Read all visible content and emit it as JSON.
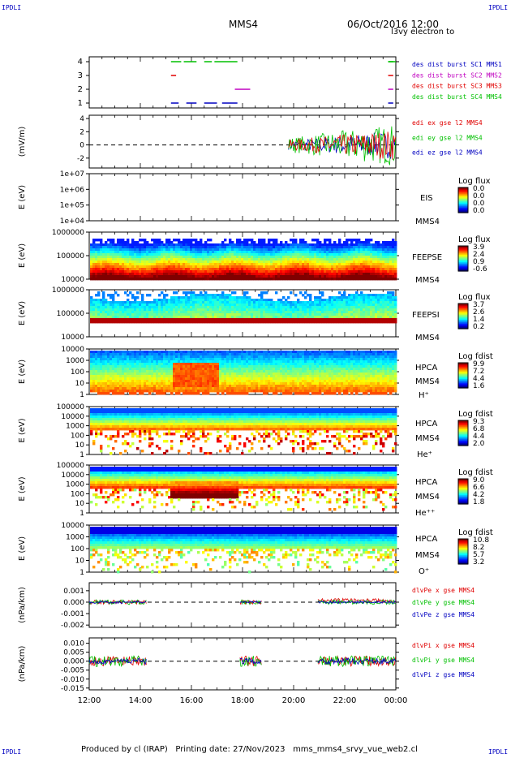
{
  "header": {
    "corner_left_top": "IPDLI",
    "corner_right_top": "IPDLI",
    "corner_left_bottom": "IPDLI",
    "corner_right_bottom": "IPDLI",
    "spacecraft": "MMS4",
    "datetime": "06/Oct/2016 12:00"
  },
  "footer": {
    "produced_by": "Produced by cl (IRAP)",
    "printing_date": "Printing date: 27/Nov/2023",
    "filename": "mms_mms4_srvy_vue_web2.cl"
  },
  "colors": {
    "red": "#e00000",
    "green": "#00c000",
    "blue": "#0000c0",
    "magenta": "#c000c0"
  },
  "chart_data": {
    "type": "multi-panel time series",
    "x_tick_labels": [
      "12:00",
      "14:00",
      "16:00",
      "18:00",
      "20:00",
      "22:00",
      "00:00"
    ],
    "x_range_hours": [
      12,
      24
    ],
    "panels": [
      {
        "id": "burst",
        "type": "timeline",
        "ylabel": "",
        "y_ticks": [
          "4",
          "3",
          "2",
          "1"
        ],
        "legend": [
          "des dist burst SC1 MMS1",
          "des dist burst SC2 MMS2",
          "des dist burst SC3 MMS3",
          "des dist burst SC4 MMS4"
        ],
        "series": [
          {
            "level": 4,
            "color": "green",
            "intervals": [
              [
                15.2,
                15.6
              ],
              [
                15.7,
                16.2
              ],
              [
                16.5,
                16.8
              ],
              [
                16.9,
                17.8
              ],
              [
                23.7,
                23.9
              ],
              [
                23.7,
                24.0
              ]
            ]
          },
          {
            "level": 3,
            "color": "red",
            "intervals": [
              [
                15.2,
                15.4
              ],
              [
                23.7,
                23.9
              ]
            ]
          },
          {
            "level": 2,
            "color": "magenta",
            "intervals": [
              [
                17.7,
                18.3
              ],
              [
                23.7,
                23.9
              ]
            ]
          },
          {
            "level": 1,
            "color": "blue",
            "intervals": [
              [
                15.2,
                15.5
              ],
              [
                15.8,
                16.2
              ],
              [
                16.5,
                17.0
              ],
              [
                17.2,
                17.8
              ],
              [
                23.7,
                23.9
              ]
            ]
          }
        ]
      },
      {
        "id": "edi",
        "type": "line",
        "ylabel": "(mV/m)",
        "y_ticks": [
          "4",
          "2",
          "0",
          "-2"
        ],
        "ylim": [
          -3.5,
          4.5
        ],
        "legend": [
          "edi ex gse l2 MMS4",
          "edi ey gse l2 MMS4",
          "edi ez gse l2 MMS4"
        ],
        "data_interval_hours": [
          19.8,
          24.0
        ]
      },
      {
        "id": "eis",
        "type": "spectrogram",
        "ylabel": "E (eV)",
        "y_ticks": [
          "1e+07",
          "1e+06",
          "1e+05",
          "1e+04"
        ],
        "labels": [
          "EIS",
          "MMS4"
        ],
        "overlay_text": "l3vy electron to",
        "colorbar_title": "Log flux",
        "colorbar_ticks": [
          "0.0",
          "0.0",
          "0.0",
          "0.0"
        ]
      },
      {
        "id": "feepse",
        "type": "spectrogram",
        "ylabel": "E (eV)",
        "y_ticks": [
          "1000000",
          "100000",
          "10000"
        ],
        "labels": [
          "FEEPSE",
          "MMS4"
        ],
        "colorbar_title": "Log flux",
        "colorbar_ticks": [
          "3.9",
          "2.4",
          "0.9",
          "-0.6"
        ]
      },
      {
        "id": "feepsi",
        "type": "spectrogram",
        "ylabel": "E (eV)",
        "y_ticks": [
          "1000000",
          "100000",
          "10000"
        ],
        "labels": [
          "FEEPSI",
          "MMS4"
        ],
        "colorbar_title": "Log flux",
        "colorbar_ticks": [
          "3.7",
          "2.6",
          "1.4",
          "0.2"
        ]
      },
      {
        "id": "hpca_h",
        "type": "spectrogram",
        "ylabel": "E (eV)",
        "y_ticks": [
          "10000",
          "1000",
          "100",
          "10",
          "1"
        ],
        "labels": [
          "HPCA",
          "MMS4",
          "H⁺"
        ],
        "colorbar_title": "Log fdist",
        "colorbar_ticks": [
          "9.9",
          "7.2",
          "4.4",
          "1.6"
        ]
      },
      {
        "id": "hpca_he",
        "type": "spectrogram",
        "ylabel": "E (eV)",
        "y_ticks": [
          "100000",
          "10000",
          "1000",
          "100",
          "10",
          "1"
        ],
        "labels": [
          "HPCA",
          "MMS4",
          "He⁺"
        ],
        "colorbar_title": "Log fdist",
        "colorbar_ticks": [
          "9.3",
          "6.8",
          "4.4",
          "2.0"
        ]
      },
      {
        "id": "hpca_hepp",
        "type": "spectrogram",
        "ylabel": "E (eV)",
        "y_ticks": [
          "100000",
          "10000",
          "1000",
          "100",
          "10",
          "1"
        ],
        "labels": [
          "HPCA",
          "MMS4",
          "He⁺⁺"
        ],
        "colorbar_title": "Log fdist",
        "colorbar_ticks": [
          "9.0",
          "6.6",
          "4.2",
          "1.8"
        ]
      },
      {
        "id": "hpca_o",
        "type": "spectrogram",
        "ylabel": "E (eV)",
        "y_ticks": [
          "10000",
          "1000",
          "100",
          "10",
          "1"
        ],
        "labels": [
          "HPCA",
          "MMS4",
          "O⁺"
        ],
        "colorbar_title": "Log fdist",
        "colorbar_ticks": [
          "10.8",
          "8.2",
          "5.7",
          "3.2"
        ]
      },
      {
        "id": "dlvpe",
        "type": "line",
        "ylabel": "(nPa/km)",
        "y_ticks": [
          "0.001",
          "0.000",
          "-0.001",
          "-0.002"
        ],
        "ylim": [
          -0.0022,
          0.0017
        ],
        "legend": [
          "dlvPe x gse MMS4",
          "dlvPe y gse MMS4",
          "dlvPe z gse MMS4"
        ],
        "data_intervals_hours": [
          [
            12.0,
            14.25
          ],
          [
            17.9,
            18.75
          ],
          [
            20.95,
            24.0
          ]
        ]
      },
      {
        "id": "dlvpi",
        "type": "line",
        "ylabel": "(nPa/km)",
        "y_ticks": [
          "0.010",
          "0.005",
          "0.000",
          "-0.005",
          "-0.010",
          "-0.015"
        ],
        "ylim": [
          -0.016,
          0.013
        ],
        "legend": [
          "dlvPi x gse MMS4",
          "dlvPi y gse MMS4",
          "dlvPi z gse MMS4"
        ],
        "data_intervals_hours": [
          [
            12.0,
            14.25
          ],
          [
            17.9,
            18.75
          ],
          [
            20.95,
            24.0
          ]
        ]
      }
    ]
  }
}
